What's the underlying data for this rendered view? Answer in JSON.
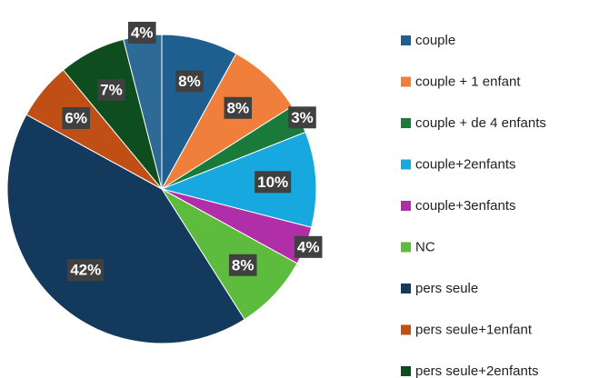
{
  "chart_data": {
    "type": "pie",
    "categories": [
      "couple",
      "couple + 1 enfant",
      "couple + de 4 enfants",
      "couple+2enfants",
      "couple+3enfants",
      "NC",
      "pers seule",
      "pers seule+1enfant",
      "pers seule+2enfants",
      null
    ],
    "values": [
      8,
      8,
      3,
      10,
      4,
      8,
      42,
      6,
      7,
      4
    ],
    "value_labels": [
      "8%",
      "8%",
      "3%",
      "10%",
      "4%",
      "8%",
      "42%",
      "6%",
      "7%",
      "4%"
    ],
    "colors": [
      "#1f5f8f",
      "#f07f3c",
      "#1a7a3a",
      "#18a8e0",
      "#b02ea8",
      "#5dbb3e",
      "#133a5c",
      "#c04f15",
      "#0e4d1e",
      "#2e6a96"
    ],
    "legend": "right"
  }
}
